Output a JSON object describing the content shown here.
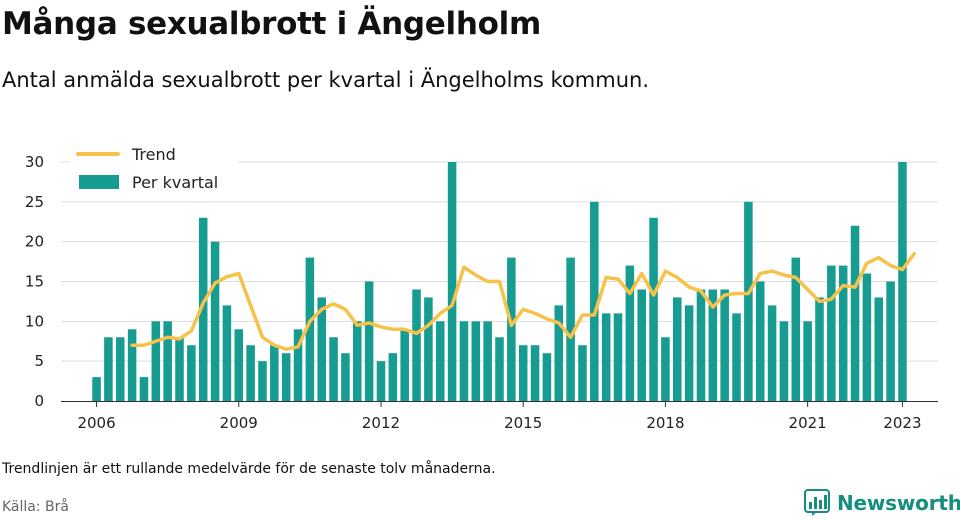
{
  "title": "Många sexualbrott i Ängelholm",
  "subtitle": "Antal anmälda sexualbrott per kvartal i Ängelholms kommun.",
  "footnote": "Trendlinjen är ett rullande medelvärde för de senaste tolv månaderna.",
  "source": "Källa: Brå",
  "brand": {
    "name": "Newsworthy",
    "icon": "newsworthy-logo-icon"
  },
  "colors": {
    "bar": "#169c91",
    "trend": "#f6c24a",
    "grid": "#dddddd",
    "brand": "#168e7f"
  },
  "chart_data": {
    "type": "bar",
    "x_unit": "quarter",
    "xlim": [
      2005.25,
      2023.75
    ],
    "ylim": [
      0,
      30
    ],
    "yticks": [
      0,
      5,
      10,
      15,
      20,
      25,
      30
    ],
    "xticks": [
      2006,
      2009,
      2012,
      2015,
      2018,
      2021,
      2023
    ],
    "grid": true,
    "legend_position": "top-left",
    "series": [
      {
        "name": "Per kvartal",
        "kind": "bar",
        "start": 2006.0,
        "step": 0.25,
        "values": [
          3,
          8,
          8,
          9,
          3,
          10,
          10,
          8,
          7,
          23,
          20,
          12,
          9,
          7,
          5,
          7,
          6,
          9,
          18,
          13,
          8,
          6,
          10,
          15,
          5,
          6,
          9,
          14,
          13,
          10,
          30,
          10,
          10,
          10,
          8,
          18,
          7,
          7,
          6,
          12,
          18,
          7,
          25,
          11,
          11,
          17,
          14,
          23,
          8,
          13,
          12,
          14,
          14,
          14,
          11,
          25,
          15,
          12,
          10,
          18,
          10,
          13,
          17,
          17,
          22,
          16,
          13,
          15,
          30
        ]
      },
      {
        "name": "Trend",
        "kind": "line",
        "start": 2006.75,
        "step": 0.25,
        "values": [
          7,
          7,
          7.5,
          8,
          7.8,
          8.8,
          12.3,
          14.8,
          15.6,
          16,
          12,
          8,
          7,
          6.5,
          6.8,
          10,
          11.5,
          12.2,
          11.5,
          9.5,
          9.8,
          9.3,
          9,
          9,
          8.5,
          9.5,
          11,
          12,
          16.8,
          15.8,
          15,
          15,
          9.5,
          11.5,
          11,
          10.3,
          9.8,
          8,
          10.8,
          10.8,
          15.5,
          15.3,
          13.5,
          16,
          13.3,
          16.3,
          15.5,
          14.3,
          13.8,
          11.8,
          13.3,
          13.5,
          13.5,
          16,
          16.3,
          15.8,
          15.5,
          14,
          12.5,
          12.8,
          14.5,
          14.3,
          17.3,
          18,
          17,
          16.5,
          18.5
        ]
      }
    ]
  }
}
